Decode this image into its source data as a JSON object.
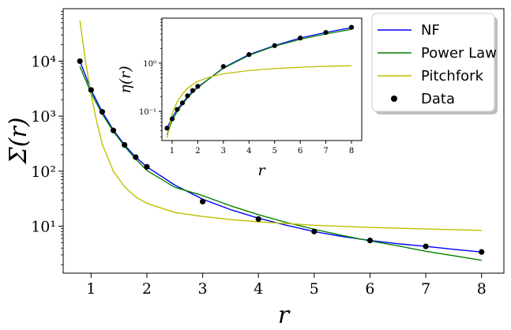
{
  "chart_data": [
    {
      "type": "line",
      "title": "",
      "xlabel": "r",
      "ylabel": "Σ(r)",
      "xlim": [
        0.5,
        8.4
      ],
      "ylim": [
        1.4,
        90000
      ],
      "yscale": "log",
      "xticks": [
        1,
        2,
        3,
        4,
        5,
        6,
        7,
        8
      ],
      "xtick_labels": [
        "1",
        "2",
        "3",
        "4",
        "5",
        "6",
        "7",
        "8"
      ],
      "yticks": [
        10,
        100,
        1000,
        10000
      ],
      "ytick_labels": [
        "10¹",
        "10²",
        "10³",
        "10⁴"
      ],
      "series": [
        {
          "name": "NF",
          "color": "#0000ff",
          "x": [
            0.8,
            1.0,
            1.2,
            1.4,
            1.6,
            1.8,
            2.0,
            2.5,
            3.0,
            3.5,
            4.0,
            4.5,
            5.0,
            5.5,
            6.0,
            6.5,
            7.0,
            7.5,
            8.0
          ],
          "y": [
            10000,
            3000,
            1200,
            560,
            300,
            180,
            120,
            56,
            31,
            20,
            14,
            10.4,
            8.0,
            6.5,
            5.5,
            4.8,
            4.3,
            3.8,
            3.4
          ]
        },
        {
          "name": "Power Law",
          "color": "#008000",
          "x": [
            0.8,
            1.0,
            1.2,
            1.4,
            1.6,
            1.8,
            2.0,
            2.5,
            3.0,
            3.5,
            4.0,
            4.5,
            5.0,
            5.5,
            6.0,
            6.5,
            7.0,
            7.5,
            8.0
          ],
          "y": [
            8000,
            2640,
            1095,
            528,
            284,
            166,
            103,
            51,
            36,
            23.5,
            16.2,
            11.7,
            8.8,
            6.8,
            5.4,
            4.4,
            3.5,
            2.9,
            2.4
          ]
        },
        {
          "name": "Pitchfork",
          "color": "#bfbf00",
          "x": [
            0.8,
            0.9,
            1.0,
            1.1,
            1.2,
            1.4,
            1.6,
            1.8,
            2.0,
            2.5,
            3.0,
            3.5,
            4.0,
            5.0,
            6.0,
            7.0,
            8.0
          ],
          "y": [
            55000,
            10000,
            2500,
            800,
            310,
            100,
            52,
            34,
            26,
            17.8,
            15,
            13.2,
            12,
            10.4,
            9.5,
            8.9,
            8.4
          ]
        }
      ],
      "scatter": {
        "name": "Data",
        "color": "#000000",
        "x": [
          0.8,
          1.0,
          1.2,
          1.4,
          1.6,
          1.8,
          2.0,
          3.0,
          4.0,
          5.0,
          6.0,
          7.0,
          8.0
        ],
        "y": [
          10000,
          3000,
          1200,
          550,
          300,
          180,
          120,
          28,
          13.5,
          8.0,
          5.5,
          4.3,
          3.4
        ]
      },
      "legend": {
        "placement": "top-right",
        "entries": [
          "NF",
          "Power Law",
          "Pitchfork",
          "Data"
        ]
      }
    },
    {
      "type": "line",
      "title": "",
      "xlabel": "r",
      "ylabel": "η(r)",
      "xlim": [
        0.6,
        8.4
      ],
      "ylim": [
        0.025,
        8.5
      ],
      "yscale": "log",
      "xticks": [
        1,
        2,
        3,
        4,
        5,
        6,
        7,
        8
      ],
      "xtick_labels": [
        "1",
        "2",
        "3",
        "4",
        "5",
        "6",
        "7",
        "8"
      ],
      "yticks": [
        0.1,
        1
      ],
      "ytick_labels": [
        "10⁻¹",
        "10⁰"
      ],
      "series": [
        {
          "name": "NF",
          "color": "#0000ff",
          "x": [
            0.8,
            1.0,
            1.2,
            1.4,
            1.6,
            1.8,
            2.0,
            2.5,
            3.0,
            4.0,
            5.0,
            6.0,
            7.0,
            8.0
          ],
          "y": [
            0.045,
            0.075,
            0.11,
            0.15,
            0.2,
            0.26,
            0.32,
            0.5,
            0.8,
            1.5,
            2.3,
            3.3,
            4.3,
            5.4
          ]
        },
        {
          "name": "Power Law",
          "color": "#008000",
          "x": [
            0.8,
            1.0,
            1.2,
            1.4,
            1.6,
            1.8,
            2.0,
            2.5,
            3.0,
            4.0,
            5.0,
            6.0,
            7.0,
            8.0
          ],
          "y": [
            0.033,
            0.065,
            0.1,
            0.14,
            0.19,
            0.25,
            0.31,
            0.5,
            0.78,
            1.45,
            2.25,
            3.1,
            4.0,
            5.0
          ]
        },
        {
          "name": "Pitchfork",
          "color": "#bfbf00",
          "x": [
            0.8,
            1.0,
            1.2,
            1.4,
            1.6,
            1.8,
            2.0,
            2.5,
            3.0,
            4.0,
            5.0,
            6.0,
            7.0,
            8.0
          ],
          "y": [
            0.028,
            0.09,
            0.16,
            0.23,
            0.3,
            0.36,
            0.42,
            0.52,
            0.6,
            0.7,
            0.77,
            0.82,
            0.86,
            0.88
          ]
        }
      ],
      "scatter": {
        "name": "Data",
        "color": "#000000",
        "x": [
          0.8,
          1.0,
          1.2,
          1.4,
          1.6,
          1.8,
          2.0,
          3.0,
          4.0,
          5.0,
          6.0,
          7.0,
          8.0
        ],
        "y": [
          0.045,
          0.07,
          0.11,
          0.15,
          0.21,
          0.27,
          0.33,
          0.85,
          1.5,
          2.3,
          3.3,
          4.3,
          5.5
        ]
      }
    }
  ]
}
